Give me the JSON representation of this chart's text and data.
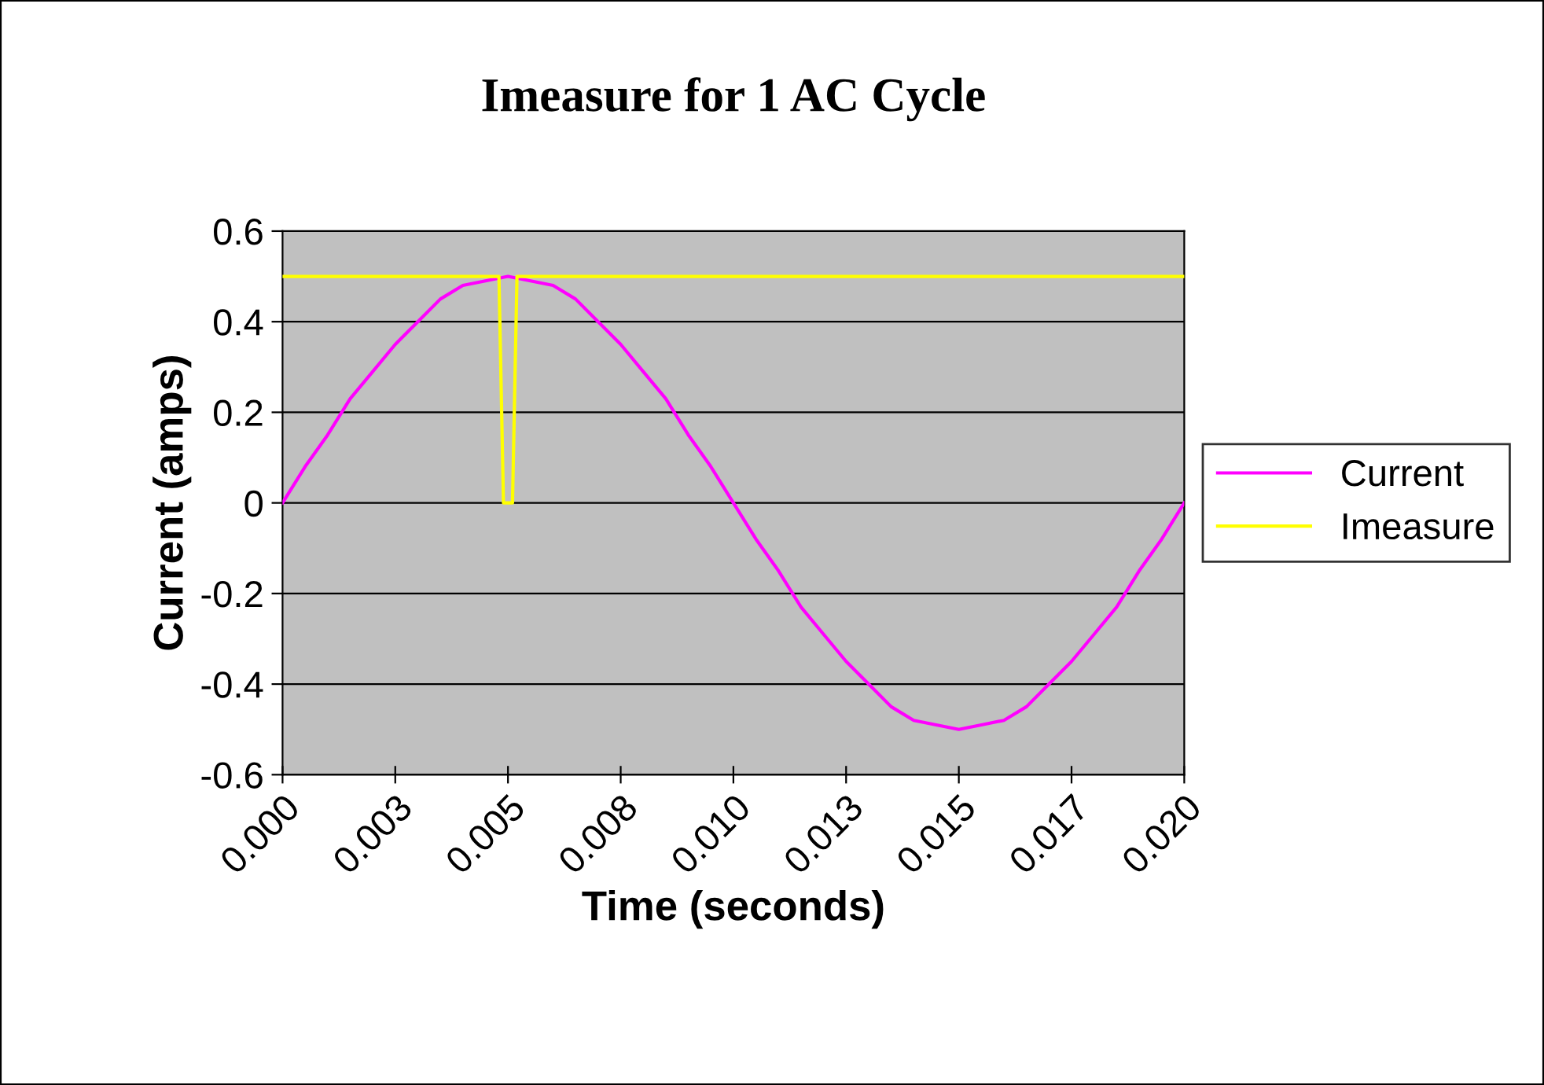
{
  "chart_data": {
    "type": "line",
    "title": "Imeasure for 1 AC Cycle",
    "xlabel": "Time (seconds)",
    "ylabel": "Current (amps)",
    "xlim": [
      0,
      0.02
    ],
    "xticks": [
      {
        "value": 0,
        "label": "0.000"
      },
      {
        "value": 0.0025,
        "label": "0.003"
      },
      {
        "value": 0.005,
        "label": "0.005"
      },
      {
        "value": 0.0075,
        "label": "0.008"
      },
      {
        "value": 0.01,
        "label": "0.010"
      },
      {
        "value": 0.0125,
        "label": "0.013"
      },
      {
        "value": 0.015,
        "label": "0.015"
      },
      {
        "value": 0.0175,
        "label": "0.017"
      },
      {
        "value": 0.02,
        "label": "0.020"
      }
    ],
    "ylim": [
      -0.6,
      0.6
    ],
    "yticks": [
      {
        "value": -0.6,
        "label": "-0.6"
      },
      {
        "value": -0.4,
        "label": "-0.4"
      },
      {
        "value": -0.2,
        "label": "-0.2"
      },
      0,
      0.2,
      0.4,
      0.6
    ],
    "grid": "y",
    "legend": "right",
    "marker": "none",
    "line_style": "solid",
    "series": [
      {
        "name": "Current",
        "color": "#ff00ff",
        "x": [
          0,
          0.0005,
          0.001,
          0.0015,
          0.002,
          0.0025,
          0.003,
          0.0035,
          0.004,
          0.0045,
          0.005,
          0.0055,
          0.006,
          0.0065,
          0.007,
          0.0075,
          0.008,
          0.0085,
          0.009,
          0.0095,
          0.01,
          0.0105,
          0.011,
          0.0115,
          0.012,
          0.0125,
          0.013,
          0.0135,
          0.014,
          0.0145,
          0.015,
          0.0155,
          0.016,
          0.0165,
          0.017,
          0.0175,
          0.018,
          0.0185,
          0.019,
          0.0195,
          0.02
        ],
        "values": [
          0,
          0.08,
          0.15,
          0.23,
          0.29,
          0.35,
          0.4,
          0.45,
          0.48,
          0.49,
          0.5,
          0.49,
          0.48,
          0.45,
          0.4,
          0.35,
          0.29,
          0.23,
          0.15,
          0.08,
          0,
          -0.08,
          -0.15,
          -0.23,
          -0.29,
          -0.35,
          -0.4,
          -0.45,
          -0.48,
          -0.49,
          -0.5,
          -0.49,
          -0.48,
          -0.45,
          -0.4,
          -0.35,
          -0.29,
          -0.23,
          -0.15,
          -0.08,
          0
        ]
      },
      {
        "name": "Imeasure",
        "color": "#ffff00",
        "x": [
          0,
          0.0048,
          0.0049,
          0.0051,
          0.0052,
          0.02
        ],
        "values": [
          0.5,
          0.5,
          0,
          0,
          0.5,
          0.5
        ]
      }
    ]
  }
}
